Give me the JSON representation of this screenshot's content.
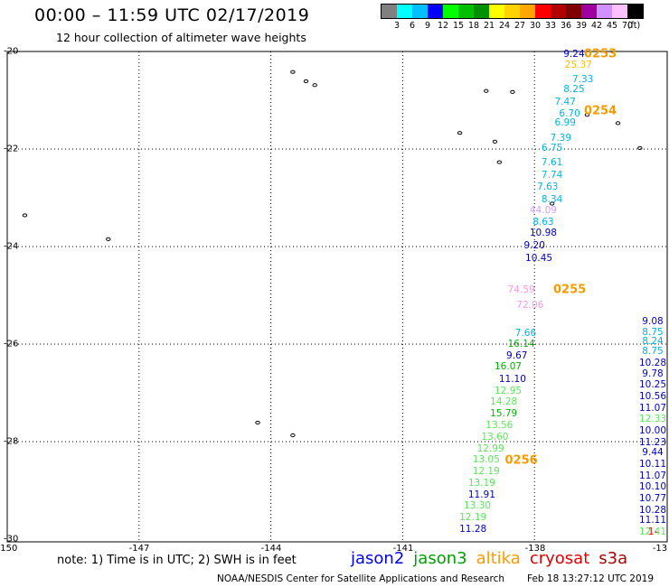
{
  "header": {
    "title": "00:00 – 11:59 UTC 02/17/2019",
    "subtitle": "12 hour collection of altimeter wave heights"
  },
  "color_scale": {
    "unit": "(ft)",
    "items": [
      {
        "label": "3",
        "color": "#808080"
      },
      {
        "label": "6",
        "color": "#00ffff"
      },
      {
        "label": "9",
        "color": "#00bfff"
      },
      {
        "label": "12",
        "color": "#0000ff"
      },
      {
        "label": "15",
        "color": "#00ff00"
      },
      {
        "label": "18",
        "color": "#00c000"
      },
      {
        "label": "21",
        "color": "#009000"
      },
      {
        "label": "24",
        "color": "#ffff00"
      },
      {
        "label": "27",
        "color": "#ffd200"
      },
      {
        "label": "30",
        "color": "#ffa500"
      },
      {
        "label": "33",
        "color": "#ff0000"
      },
      {
        "label": "36",
        "color": "#b00000"
      },
      {
        "label": "39",
        "color": "#800000"
      },
      {
        "label": "42",
        "color": "#a000a0"
      },
      {
        "label": "45",
        "color": "#d090ff"
      },
      {
        "label": "70",
        "color": "#ffc0ff"
      },
      {
        "label": "",
        "color": "#000000"
      }
    ]
  },
  "axes": {
    "lat_labels": [
      "-20",
      "-22",
      "-24",
      "-26",
      "-28",
      "-30"
    ],
    "lon_labels": [
      "-150",
      "-147",
      "-144",
      "-141",
      "-138",
      "-13"
    ]
  },
  "observations": [
    {
      "text": "9.24",
      "color": "#0000c8",
      "lon": -137.1,
      "lat": -20.05
    },
    {
      "text": "25.37",
      "color": "#ffbe00",
      "lon": -137.0,
      "lat": -20.27
    },
    {
      "text": "7.33",
      "color": "#00b4e6",
      "lon": -136.9,
      "lat": -20.57
    },
    {
      "text": "8.25",
      "color": "#00b4e6",
      "lon": -137.1,
      "lat": -20.77
    },
    {
      "text": "7.47",
      "color": "#00b4e6",
      "lon": -137.3,
      "lat": -21.03
    },
    {
      "text": "6.70",
      "color": "#00b4e6",
      "lon": -137.2,
      "lat": -21.27
    },
    {
      "text": "6.99",
      "color": "#00b4e6",
      "lon": -137.3,
      "lat": -21.47
    },
    {
      "text": "7.39",
      "color": "#00b4e6",
      "lon": -137.4,
      "lat": -21.77
    },
    {
      "text": "6.75",
      "color": "#00b4e6",
      "lon": -137.6,
      "lat": -21.99
    },
    {
      "text": "7.61",
      "color": "#00b4e6",
      "lon": -137.6,
      "lat": -22.28
    },
    {
      "text": "7.74",
      "color": "#00b4e6",
      "lon": -137.6,
      "lat": -22.53
    },
    {
      "text": "7.63",
      "color": "#00b4e6",
      "lon": -137.7,
      "lat": -22.78
    },
    {
      "text": "8.34",
      "color": "#00b4e6",
      "lon": -137.6,
      "lat": -23.03
    },
    {
      "text": "44.09",
      "color": "#d0a0ff",
      "lon": -137.8,
      "lat": -23.26
    },
    {
      "text": "8.63",
      "color": "#00b4e6",
      "lon": -137.8,
      "lat": -23.5
    },
    {
      "text": "10.98",
      "color": "#0000c8",
      "lon": -137.8,
      "lat": -23.73
    },
    {
      "text": "9.20",
      "color": "#0000c8",
      "lon": -138.0,
      "lat": -23.99
    },
    {
      "text": "10.45",
      "color": "#0000c8",
      "lon": -137.9,
      "lat": -24.24
    },
    {
      "text": "74.59",
      "color": "#ff96e6",
      "lon": -138.3,
      "lat": -24.88
    },
    {
      "text": "72.06",
      "color": "#ff96e6",
      "lon": -138.1,
      "lat": -25.21
    },
    {
      "text": "7.66",
      "color": "#00b4e6",
      "lon": -138.2,
      "lat": -25.77
    },
    {
      "text": "16.14",
      "color": "#00b400",
      "lon": -138.3,
      "lat": -26.0
    },
    {
      "text": "9.67",
      "color": "#0000c8",
      "lon": -138.4,
      "lat": -26.24
    },
    {
      "text": "16.07",
      "color": "#00b400",
      "lon": -138.6,
      "lat": -26.47
    },
    {
      "text": "11.10",
      "color": "#0000c8",
      "lon": -138.5,
      "lat": -26.73
    },
    {
      "text": "12.95",
      "color": "#5ae65a",
      "lon": -138.6,
      "lat": -26.96
    },
    {
      "text": "14.28",
      "color": "#5ae65a",
      "lon": -138.7,
      "lat": -27.19
    },
    {
      "text": "15.79",
      "color": "#00b400",
      "lon": -138.7,
      "lat": -27.43
    },
    {
      "text": "13.56",
      "color": "#5ae65a",
      "lon": -138.8,
      "lat": -27.66
    },
    {
      "text": "13.60",
      "color": "#5ae65a",
      "lon": -138.9,
      "lat": -27.9
    },
    {
      "text": "12.99",
      "color": "#5ae65a",
      "lon": -139.0,
      "lat": -28.14
    },
    {
      "text": "13.05",
      "color": "#5ae65a",
      "lon": -139.1,
      "lat": -28.37
    },
    {
      "text": "12.19",
      "color": "#5ae65a",
      "lon": -139.1,
      "lat": -28.61
    },
    {
      "text": "13.19",
      "color": "#5ae65a",
      "lon": -139.2,
      "lat": -28.85
    },
    {
      "text": "11.91",
      "color": "#0000c8",
      "lon": -139.2,
      "lat": -29.09
    },
    {
      "text": "13.30",
      "color": "#5ae65a",
      "lon": -139.3,
      "lat": -29.32
    },
    {
      "text": "12.19",
      "color": "#5ae65a",
      "lon": -139.4,
      "lat": -29.56
    },
    {
      "text": "11.28",
      "color": "#0000c8",
      "lon": -139.4,
      "lat": -29.8
    },
    {
      "text": "9.08",
      "color": "#0000c8",
      "lon": -134.4,
      "lat": -25.54
    },
    {
      "text": "8.75",
      "color": "#00b4e6",
      "lon": -134.4,
      "lat": -25.75
    },
    {
      "text": "8.24",
      "color": "#00b4e6",
      "lon": -134.5,
      "lat": -25.95
    },
    {
      "text": "8.75",
      "color": "#00b4e6",
      "lon": -134.5,
      "lat": -26.14
    },
    {
      "text": "10.28",
      "color": "#0000c8",
      "lon": -134.6,
      "lat": -26.38
    },
    {
      "text": "9.78",
      "color": "#0000c8",
      "lon": -134.6,
      "lat": -26.61
    },
    {
      "text": "10.25",
      "color": "#0000c8",
      "lon": -134.6,
      "lat": -26.84
    },
    {
      "text": "10.56",
      "color": "#0000c8",
      "lon": -134.6,
      "lat": -27.07
    },
    {
      "text": "11.07",
      "color": "#0000c8",
      "lon": -134.7,
      "lat": -27.31
    },
    {
      "text": "12.33",
      "color": "#5ae65a",
      "lon": -134.7,
      "lat": -27.54
    },
    {
      "text": "10.00",
      "color": "#0000c8",
      "lon": -134.8,
      "lat": -27.77
    },
    {
      "text": "11.23",
      "color": "#0000c8",
      "lon": -134.8,
      "lat": -28.01
    },
    {
      "text": "9.44",
      "color": "#0000c8",
      "lon": -134.9,
      "lat": -28.23
    },
    {
      "text": "10.11",
      "color": "#0000c8",
      "lon": -134.9,
      "lat": -28.46
    },
    {
      "text": "11.07",
      "color": "#0000c8",
      "lon": -134.9,
      "lat": -28.7
    },
    {
      "text": "10.10",
      "color": "#0000c8",
      "lon": -134.9,
      "lat": -28.93
    },
    {
      "text": "10.77",
      "color": "#0000c8",
      "lon": -135.0,
      "lat": -29.16
    },
    {
      "text": "10.28",
      "color": "#0000c8",
      "lon": -135.0,
      "lat": -29.4
    },
    {
      "text": "11.11",
      "color": "#0000c8",
      "lon": -135.0,
      "lat": -29.62
    },
    {
      "text": "12.41",
      "color": "#5ae65a",
      "lon": -135.0,
      "lat": -29.85
    },
    {
      "text": "1-",
      "color": "#e00000",
      "lon": -134.1,
      "lat": -29.85
    }
  ],
  "pass_labels": [
    {
      "text": "0253",
      "lon": -136.5,
      "lat": -20.05
    },
    {
      "text": "0254",
      "lon": -136.5,
      "lat": -21.23
    },
    {
      "text": "0255",
      "lon": -137.2,
      "lat": -24.88
    },
    {
      "text": "0256",
      "lon": -138.3,
      "lat": -28.39
    }
  ],
  "islands": [
    {
      "lon": -143.5,
      "lat": -20.42
    },
    {
      "lon": -143.2,
      "lat": -20.61
    },
    {
      "lon": -143.0,
      "lat": -20.69
    },
    {
      "lon": -139.1,
      "lat": -20.81
    },
    {
      "lon": -138.5,
      "lat": -20.83
    },
    {
      "lon": -139.7,
      "lat": -21.67
    },
    {
      "lon": -138.9,
      "lat": -21.85
    },
    {
      "lon": -138.8,
      "lat": -22.27
    },
    {
      "lon": -137.6,
      "lat": -23.12
    },
    {
      "lon": -136.8,
      "lat": -21.3
    },
    {
      "lon": -136.1,
      "lat": -21.47
    },
    {
      "lon": -135.6,
      "lat": -21.98
    },
    {
      "lon": -134.5,
      "lat": -21.52
    },
    {
      "lon": -149.6,
      "lat": -23.36
    },
    {
      "lon": -147.7,
      "lat": -23.85
    },
    {
      "lon": -144.3,
      "lat": -27.61
    },
    {
      "lon": -143.5,
      "lat": -27.87
    }
  ],
  "footer": {
    "note": "note: 1) Time is in UTC; 2) SWH is in feet",
    "satellites": [
      {
        "name": "jason2",
        "color": "#0000ff"
      },
      {
        "name": "jason3",
        "color": "#00a000"
      },
      {
        "name": "altika",
        "color": "#ff9900"
      },
      {
        "name": "cryosat",
        "color": "#e00000"
      },
      {
        "name": "s3a",
        "color": "#b00000"
      }
    ],
    "credit": "NOAA/NESDIS Center for Satellite Applications and Research",
    "timestamp": "Feb 18 13:27:12 UTC 2019"
  }
}
